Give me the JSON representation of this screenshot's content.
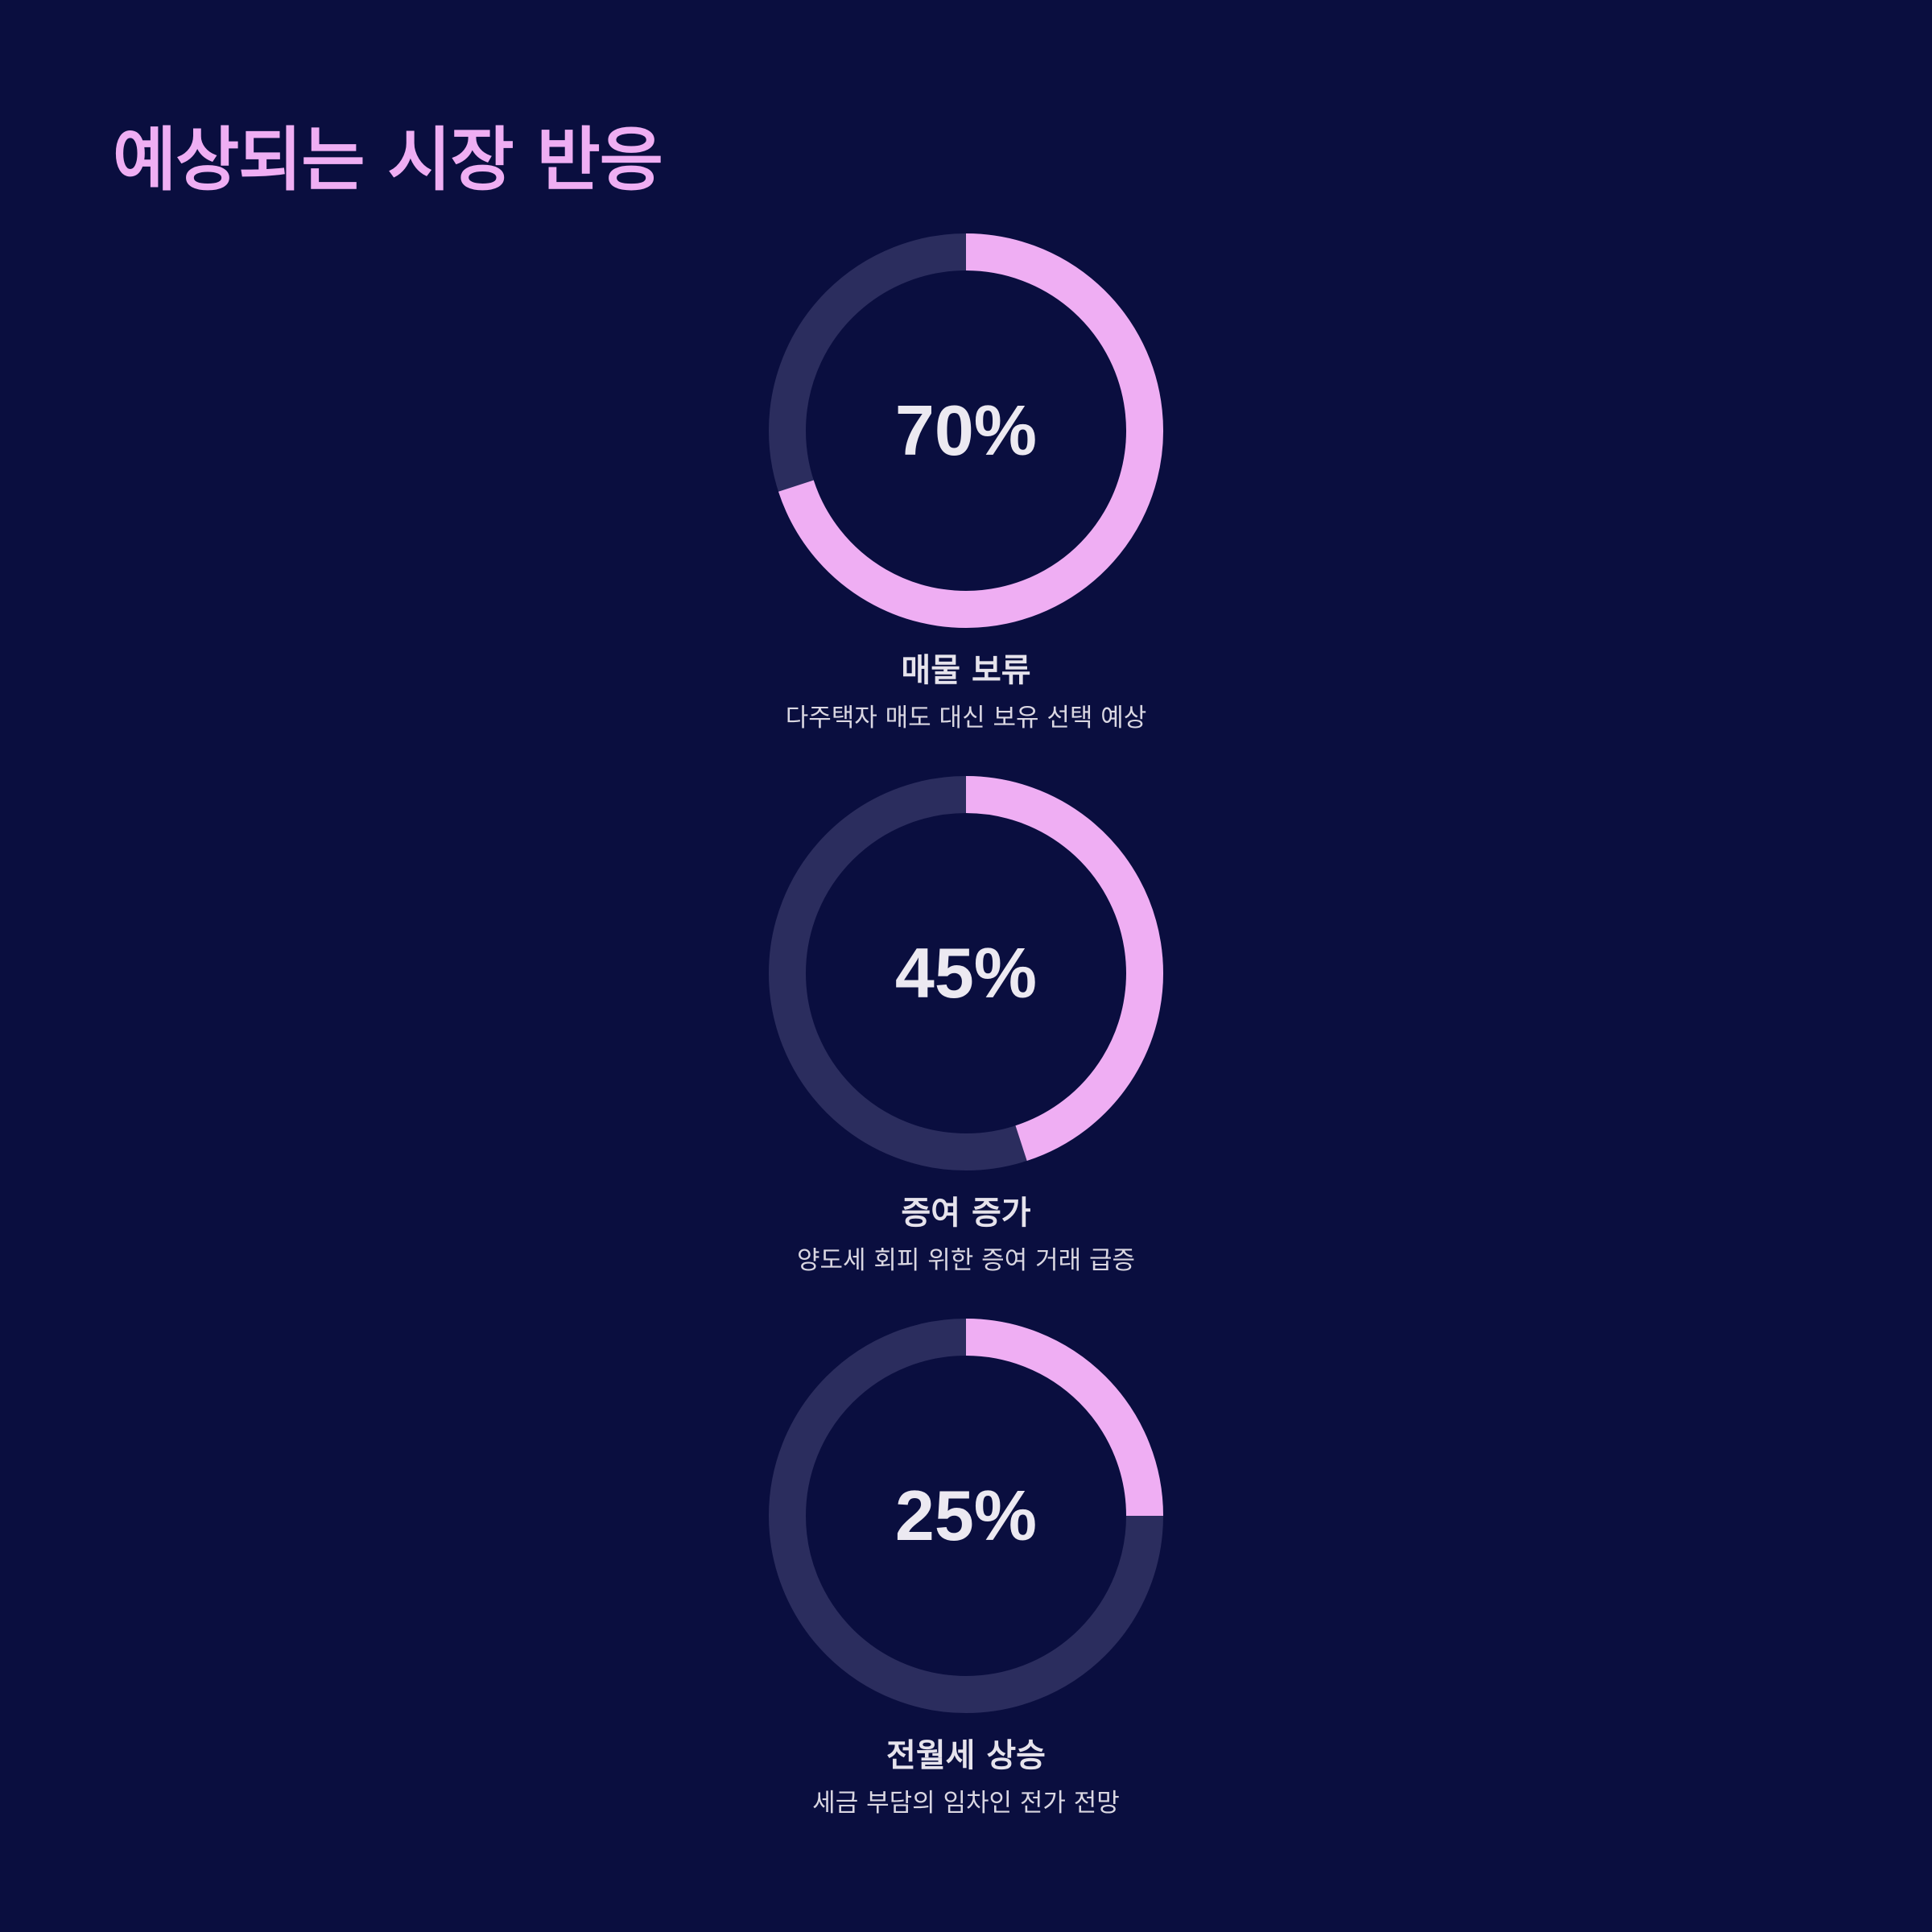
{
  "page": {
    "title": "예상되는 시장 반응"
  },
  "colors": {
    "background": "#0a0e3f",
    "accent": "#efaef3",
    "track": "#2b2d5e",
    "text": "#ece9f1"
  },
  "chart_data": [
    {
      "type": "pie",
      "variant": "donut-gauge",
      "value": 70,
      "max": 100,
      "value_label": "70%",
      "label": "매물 보류",
      "description": "다주택자 매도 대신 보유 선택 예상"
    },
    {
      "type": "pie",
      "variant": "donut-gauge",
      "value": 45,
      "max": 100,
      "value_label": "45%",
      "label": "증여 증가",
      "description": "양도세 회피 위한 증여 거래 급증"
    },
    {
      "type": "pie",
      "variant": "donut-gauge",
      "value": 25,
      "max": 100,
      "value_label": "25%",
      "label": "전월세 상승",
      "description": "세금 부담의 임차인 전가 전망"
    }
  ]
}
